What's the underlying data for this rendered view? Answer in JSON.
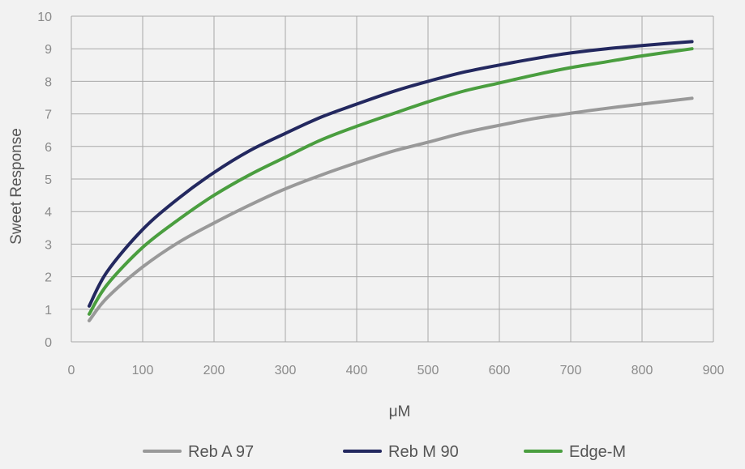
{
  "chart_data": {
    "type": "line",
    "xlabel": "μM",
    "ylabel": "Sweet Response",
    "xlim": [
      0,
      900
    ],
    "ylim": [
      0,
      10
    ],
    "x_ticks": [
      0,
      100,
      200,
      300,
      400,
      500,
      600,
      700,
      800,
      900
    ],
    "y_ticks": [
      0,
      1,
      2,
      3,
      4,
      5,
      6,
      7,
      8,
      9,
      10
    ],
    "grid": true,
    "legend_position": "bottom",
    "x": [
      25,
      50,
      100,
      150,
      200,
      250,
      300,
      350,
      400,
      450,
      500,
      550,
      600,
      650,
      700,
      750,
      800,
      870
    ],
    "series": [
      {
        "name": "Reb A 97",
        "color": "#999999",
        "values": [
          0.65,
          1.35,
          2.3,
          3.05,
          3.65,
          4.2,
          4.7,
          5.12,
          5.5,
          5.85,
          6.13,
          6.42,
          6.65,
          6.86,
          7.02,
          7.17,
          7.3,
          7.48
        ]
      },
      {
        "name": "Reb M 90",
        "color": "#23285f",
        "values": [
          1.1,
          2.15,
          3.45,
          4.4,
          5.2,
          5.87,
          6.4,
          6.9,
          7.3,
          7.68,
          8.0,
          8.28,
          8.5,
          8.7,
          8.87,
          9.0,
          9.1,
          9.22
        ]
      },
      {
        "name": "Edge-M",
        "color": "#4a9e3f",
        "values": [
          0.85,
          1.75,
          2.9,
          3.75,
          4.5,
          5.13,
          5.67,
          6.2,
          6.62,
          7.0,
          7.37,
          7.7,
          7.95,
          8.2,
          8.42,
          8.6,
          8.78,
          9.0
        ]
      }
    ]
  }
}
